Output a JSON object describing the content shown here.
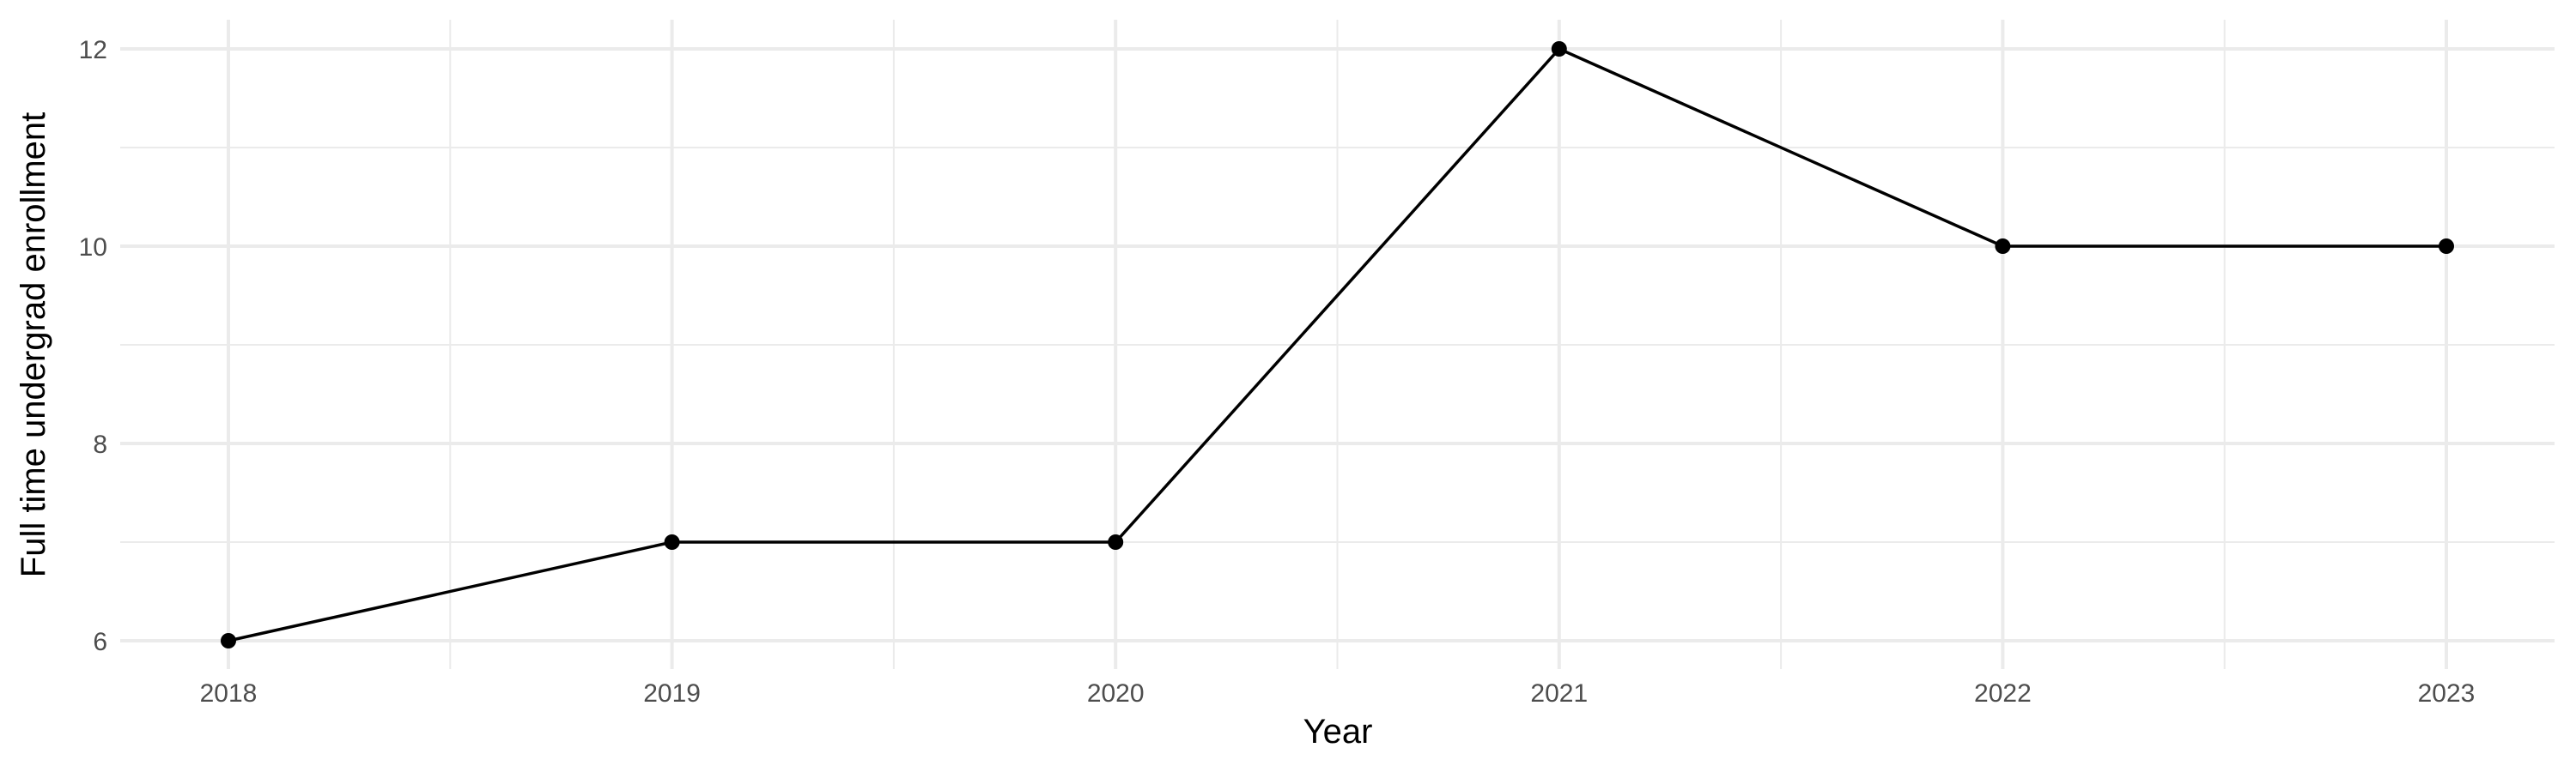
{
  "chart_data": {
    "type": "line",
    "xlabel": "Year",
    "ylabel": "Full time undergrad enrollment",
    "x": [
      2018,
      2019,
      2020,
      2021,
      2022,
      2023
    ],
    "series": [
      {
        "values": [
          6,
          7,
          7,
          12,
          10,
          10
        ]
      }
    ],
    "x_ticks": [
      "2018",
      "2019",
      "2020",
      "2021",
      "2022",
      "2023"
    ],
    "y_ticks": [
      "6",
      "8",
      "10",
      "12"
    ],
    "ylim": [
      6,
      12
    ],
    "xlim": [
      2018,
      2023
    ],
    "grid": true,
    "line_color": "#000000",
    "grid_color": "#ebebeb"
  }
}
